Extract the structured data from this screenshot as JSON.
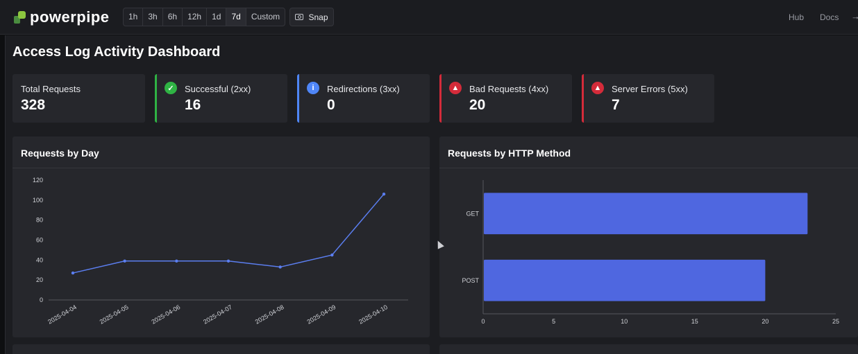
{
  "header": {
    "brand": "powerpipe",
    "time_ranges": [
      "1h",
      "3h",
      "6h",
      "12h",
      "1d",
      "7d",
      "Custom"
    ],
    "active_range": "7d",
    "snap_label": "Snap",
    "nav": {
      "hub": "Hub",
      "docs": "Docs"
    },
    "icons": {
      "logo": "powerpipe-logo-icon",
      "snap": "camera-icon",
      "more": "arrow-right-icon"
    }
  },
  "dashboard": {
    "title": "Access Log Activity Dashboard"
  },
  "cards": [
    {
      "label": "Total Requests",
      "value": "328",
      "accent": "",
      "icon": ""
    },
    {
      "label": "Successful (2xx)",
      "value": "16",
      "accent": "#2fb344",
      "icon": "check-circle-icon",
      "icon_color": "#2fb344",
      "glyph": "✓"
    },
    {
      "label": "Redirections (3xx)",
      "value": "0",
      "accent": "#4f86f7",
      "icon": "info-circle-icon",
      "icon_color": "#4f86f7",
      "glyph": "i"
    },
    {
      "label": "Bad Requests (4xx)",
      "value": "20",
      "accent": "#d42b3a",
      "icon": "alert-bell-icon",
      "icon_color": "#d42b3a",
      "glyph": "▲"
    },
    {
      "label": "Server Errors (5xx)",
      "value": "7",
      "accent": "#d42b3a",
      "icon": "alert-bell-icon",
      "icon_color": "#d42b3a",
      "glyph": "▲"
    }
  ],
  "panels": {
    "by_day": {
      "title": "Requests by Day"
    },
    "by_method": {
      "title": "Requests by HTTP Method"
    }
  },
  "chart_data": [
    {
      "type": "line",
      "title": "Requests by Day",
      "x": [
        "2025-04-04",
        "2025-04-05",
        "2025-04-06",
        "2025-04-07",
        "2025-04-08",
        "2025-04-09",
        "2025-04-10"
      ],
      "series": [
        {
          "values": [
            27,
            39,
            39,
            39,
            33,
            45,
            106
          ],
          "color": "#5b7ef0"
        }
      ],
      "ylim": [
        0,
        120
      ],
      "yticks": [
        0,
        20,
        40,
        60,
        80,
        100,
        120
      ],
      "xlabel": "",
      "ylabel": "",
      "grid": false
    },
    {
      "type": "bar",
      "orientation": "horizontal",
      "title": "Requests by HTTP Method",
      "categories": [
        "GET",
        "POST"
      ],
      "values": [
        23,
        20
      ],
      "color": "#4f67e0",
      "xlim": [
        0,
        25
      ],
      "xticks": [
        0,
        5,
        10,
        15,
        20,
        25
      ],
      "xlabel": "",
      "ylabel": ""
    }
  ]
}
